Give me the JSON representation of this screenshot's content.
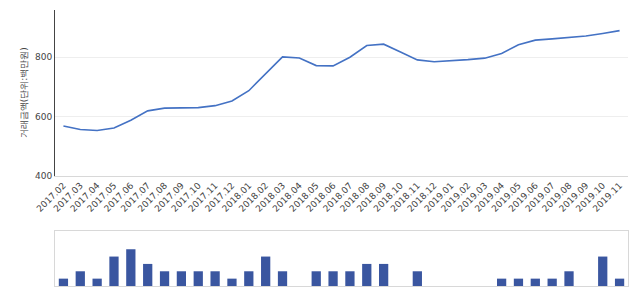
{
  "chart_data": [
    {
      "type": "line",
      "ylabel": "거래금액(단위:백만원)",
      "categories": [
        "2017.02",
        "2017.03",
        "2017.04",
        "2017.05",
        "2017.06",
        "2017.07",
        "2017.08",
        "2017.09",
        "2017.10",
        "2017.11",
        "2017.12",
        "2018.01",
        "2018.02",
        "2018.03",
        "2018.04",
        "2018.05",
        "2018.06",
        "2018.07",
        "2018.08",
        "2018.09",
        "2018.10",
        "2018.11",
        "2018.12",
        "2019.01",
        "2019.02",
        "2019.03",
        "2019.04",
        "2019.05",
        "2019.06",
        "2019.07",
        "2019.08",
        "2019.09",
        "2019.10",
        "2019.11"
      ],
      "values": [
        567.72,
        555.81,
        552.71,
        561.16,
        587.07,
        618.86,
        628.29,
        627.79,
        629.77,
        636.54,
        652.39,
        687.12,
        745.83,
        801.52,
        797.69,
        772.03,
        770.99,
        800.37,
        839.72,
        844.44,
        817.67,
        791.33,
        784.95,
        788.02,
        792.02,
        797.14,
        812.81,
        842.42,
        858.09,
        862.26,
        865.98,
        871.81,
        880.48,
        890.21
      ],
      "color": "#4472C4",
      "ylim": [
        400,
        960
      ],
      "yticks": [
        400,
        600,
        800
      ],
      "grid": true
    },
    {
      "type": "bar",
      "categories": [
        "2017.02",
        "2017.03",
        "2017.04",
        "2017.05",
        "2017.06",
        "2017.07",
        "2017.08",
        "2017.09",
        "2017.10",
        "2017.11",
        "2017.12",
        "2018.01",
        "2018.02",
        "2018.03",
        "2018.04",
        "2018.05",
        "2018.06",
        "2018.07",
        "2018.08",
        "2018.09",
        "2018.10",
        "2018.11",
        "2018.12",
        "2019.01",
        "2019.02",
        "2019.03",
        "2019.04",
        "2019.05",
        "2019.06",
        "2019.07",
        "2019.08",
        "2019.09",
        "2019.10",
        "2019.11"
      ],
      "values": [
        1,
        2,
        1,
        4,
        5,
        3,
        2,
        2,
        2,
        2,
        1,
        2,
        4,
        2,
        0,
        2,
        2,
        2,
        3,
        3,
        0,
        2,
        0,
        0,
        0,
        0,
        1,
        1,
        1,
        1,
        2,
        0,
        4,
        1
      ],
      "color": "#3A56A0",
      "ylim": [
        0,
        7.5
      ],
      "tick_labels": false
    }
  ]
}
